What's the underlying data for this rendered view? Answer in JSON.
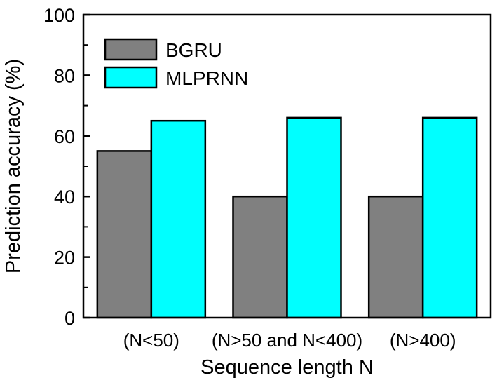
{
  "chart_data": {
    "type": "bar",
    "categories": [
      "(N<50)",
      "(N>50 and N<400)",
      "(N>400)"
    ],
    "series": [
      {
        "name": "BGRU",
        "values": [
          55,
          40,
          40
        ],
        "color": "#808080"
      },
      {
        "name": "MLPRNN",
        "values": [
          65,
          66,
          66
        ],
        "color": "#00FFFF"
      }
    ],
    "xlabel": "Sequence length N",
    "ylabel": "Prediction accuracy (%)",
    "ylim": [
      0,
      100
    ],
    "yticks": [
      0,
      20,
      40,
      60,
      80,
      100
    ],
    "grid": false,
    "legend_position": "top-left"
  }
}
